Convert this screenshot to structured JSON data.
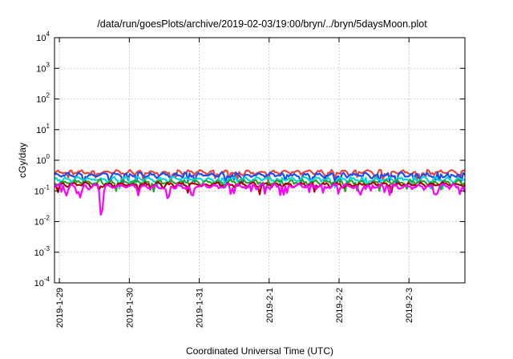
{
  "chart_data": {
    "type": "line",
    "title": "/data/run/goesPlots/archive/2019-02-03/19:00/bryn/../bryn/5daysMoon.plot",
    "xlabel": "Coordinated Universal Time (UTC)",
    "ylabel": "cGy/day",
    "yscale": "log",
    "ylim": [
      0.0001,
      10000
    ],
    "y_ticks": [
      {
        "value": 0.0001,
        "base": "10",
        "exp": "-4"
      },
      {
        "value": 0.001,
        "base": "10",
        "exp": "-3"
      },
      {
        "value": 0.01,
        "base": "10",
        "exp": "-2"
      },
      {
        "value": 0.1,
        "base": "10",
        "exp": "-1"
      },
      {
        "value": 1,
        "base": "10",
        "exp": "0"
      },
      {
        "value": 10,
        "base": "10",
        "exp": "1"
      },
      {
        "value": 100,
        "base": "10",
        "exp": "2"
      },
      {
        "value": 1000,
        "base": "10",
        "exp": "3"
      },
      {
        "value": 10000,
        "base": "10",
        "exp": "4"
      }
    ],
    "x_start": "2019-01-29",
    "x_range_days": [
      -0.07,
      5.8
    ],
    "x_ticks": [
      {
        "day": 0,
        "label": "2019-1-29"
      },
      {
        "day": 1,
        "label": "2019-1-30"
      },
      {
        "day": 2,
        "label": "2019-1-31"
      },
      {
        "day": 3,
        "label": "2019-2-1"
      },
      {
        "day": 4,
        "label": "2019-2-2"
      },
      {
        "day": 5,
        "label": "2019-2-3"
      }
    ],
    "grid": true,
    "series": [
      {
        "color": "#e8453c",
        "base": 0.4,
        "dips": [],
        "clip": false
      },
      {
        "color": "#1f4bf0",
        "base": 0.33,
        "dips": [],
        "clip": false
      },
      {
        "color": "#00d8d8",
        "base": 0.24,
        "dips": [],
        "clip": false
      },
      {
        "color": "#2e9e2e",
        "base": 0.19,
        "dips": [],
        "clip": false
      },
      {
        "color": "#aa0000",
        "base": 0.16,
        "dips": [],
        "clip": false
      },
      {
        "color": "#ff00ff",
        "base": 0.14,
        "dips": [
          [
            0.6,
            0.012
          ],
          [
            0.3,
            0.06
          ],
          [
            0.1,
            0.07
          ],
          [
            1.55,
            0.055
          ],
          [
            1.9,
            0.06
          ],
          [
            4.3,
            0.07
          ],
          [
            5.4,
            0.08
          ]
        ],
        "clip": false
      }
    ]
  }
}
